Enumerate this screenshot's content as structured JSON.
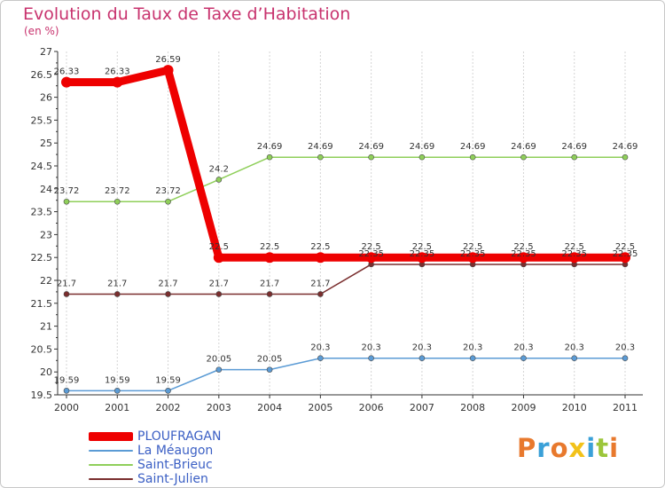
{
  "title": "Evolution du Taux de Taxe d’Habitation",
  "unit": "(en %)",
  "brand": "Proxiti",
  "brand_colors": [
    "#e8792d",
    "#3aa0d8",
    "#e8792d",
    "#f2c21a",
    "#3aa0d8",
    "#9cc63b",
    "#e8792d"
  ],
  "chart_data": {
    "type": "line",
    "title": "Evolution du Taux de Taxe d’Habitation",
    "ylabel": "(en %)",
    "xlabel": "",
    "x": [
      "2000",
      "2001",
      "2002",
      "2003",
      "2004",
      "2005",
      "2006",
      "2007",
      "2008",
      "2009",
      "2010",
      "2011"
    ],
    "ylim": [
      19.5,
      27
    ],
    "yticks": [
      "19.5",
      "20",
      "20.5",
      "21",
      "21.5",
      "22",
      "22.5",
      "23",
      "23.5",
      "24",
      "24.5",
      "25",
      "25.5",
      "26",
      "26.5",
      "27"
    ],
    "grid": "vertical",
    "legend": "bottom-left",
    "series": [
      {
        "name": "PLOUFRAGAN",
        "color": "#ee0000",
        "width": "thick",
        "values": [
          26.33,
          26.33,
          26.59,
          22.5,
          22.5,
          22.5,
          22.5,
          22.5,
          22.5,
          22.5,
          22.5,
          22.5
        ],
        "labels": [
          "26.33",
          "26.33",
          "26.59",
          "22.5",
          "22.5",
          "22.5",
          "22.5",
          "22.5",
          "22.5",
          "22.5",
          "22.5",
          "22.5"
        ]
      },
      {
        "name": "La Méaugon",
        "color": "#5b9bd5",
        "values": [
          19.59,
          19.59,
          19.59,
          20.05,
          20.05,
          20.3,
          20.3,
          20.3,
          20.3,
          20.3,
          20.3,
          20.3
        ],
        "labels": [
          "19.59",
          "19.59",
          "19.59",
          "20.05",
          "20.05",
          "20.3",
          "20.3",
          "20.3",
          "20.3",
          "20.3",
          "20.3",
          "20.3"
        ]
      },
      {
        "name": "Saint-Brieuc",
        "color": "#8fcf5a",
        "values": [
          23.72,
          23.72,
          23.72,
          24.2,
          24.69,
          24.69,
          24.69,
          24.69,
          24.69,
          24.69,
          24.69,
          24.69
        ],
        "labels": [
          "23.72",
          "23.72",
          "23.72",
          "24.2",
          "24.69",
          "24.69",
          "24.69",
          "24.69",
          "24.69",
          "24.69",
          "24.69",
          "24.69"
        ]
      },
      {
        "name": "Saint-Julien",
        "color": "#7a2e2e",
        "values": [
          21.7,
          21.7,
          21.7,
          21.7,
          21.7,
          21.7,
          22.35,
          22.35,
          22.35,
          22.35,
          22.35,
          22.35
        ],
        "labels": [
          "21.7",
          "21.7",
          "21.7",
          "21.7",
          "21.7",
          "21.7",
          "22.35",
          "22.35",
          "22.35",
          "22.35",
          "22.35",
          "22.35"
        ]
      }
    ]
  }
}
